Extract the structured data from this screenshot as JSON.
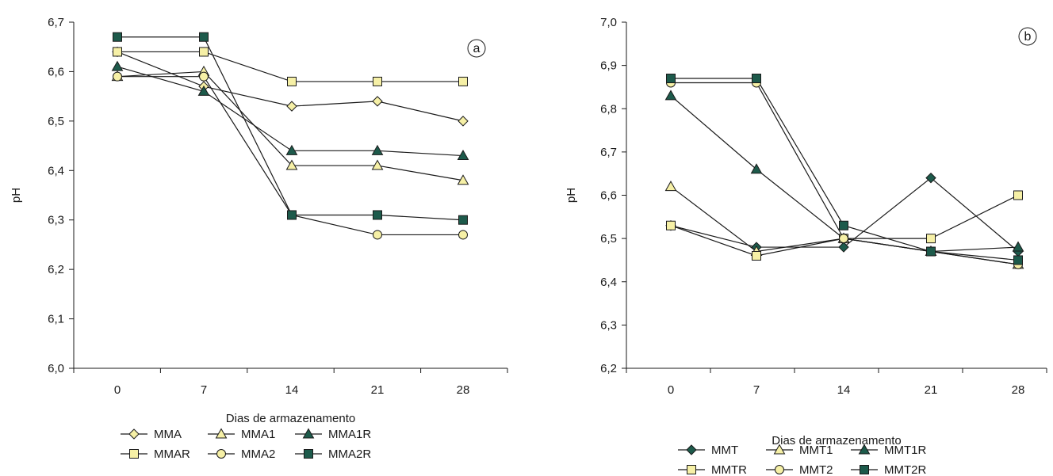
{
  "chart_data": [
    {
      "type": "line",
      "panel_label": "a",
      "xlabel": "Dias de armazenamento",
      "ylabel": "pH",
      "categories": [
        "0",
        "7",
        "14",
        "21",
        "28"
      ],
      "yticks": [
        "6,0",
        "6,1",
        "6,2",
        "6,3",
        "6,4",
        "6,5",
        "6,6",
        "6,7"
      ],
      "ylim": [
        6.0,
        6.7
      ],
      "grid": false,
      "legend_position": "bottom",
      "series": [
        {
          "name": "MMA",
          "marker": "diamond",
          "fill": "#f6f0a6",
          "values": [
            6.64,
            6.57,
            6.53,
            6.54,
            6.5
          ]
        },
        {
          "name": "MMA1",
          "marker": "triangle",
          "fill": "#f6f0a6",
          "values": [
            6.59,
            6.6,
            6.41,
            6.41,
            6.38
          ]
        },
        {
          "name": "MMA1R",
          "marker": "triangle",
          "fill": "#1d5a4b",
          "values": [
            6.61,
            6.56,
            6.44,
            6.44,
            6.43
          ]
        },
        {
          "name": "MMAR",
          "marker": "square",
          "fill": "#f6f0a6",
          "values": [
            6.64,
            6.64,
            6.58,
            6.58,
            6.58
          ]
        },
        {
          "name": "MMA2",
          "marker": "circle",
          "fill": "#f6f0a6",
          "values": [
            6.59,
            6.59,
            6.31,
            6.27,
            6.27
          ]
        },
        {
          "name": "MMA2R",
          "marker": "square",
          "fill": "#1d5a4b",
          "values": [
            6.67,
            6.67,
            6.31,
            6.31,
            6.3
          ]
        }
      ]
    },
    {
      "type": "line",
      "panel_label": "b",
      "xlabel": "Dias de armazenamento",
      "ylabel": "pH",
      "categories": [
        "0",
        "7",
        "14",
        "21",
        "28"
      ],
      "yticks": [
        "6,2",
        "6,3",
        "6,4",
        "6,5",
        "6,6",
        "6,7",
        "6,8",
        "6,9",
        "7,0"
      ],
      "ylim": [
        6.2,
        7.0
      ],
      "grid": false,
      "legend_position": "bottom",
      "series": [
        {
          "name": "MMT",
          "marker": "diamond",
          "fill": "#1d5a4b",
          "values": [
            6.53,
            6.48,
            6.48,
            6.64,
            6.47
          ]
        },
        {
          "name": "MMT1",
          "marker": "triangle",
          "fill": "#f6f0a6",
          "values": [
            6.62,
            6.47,
            6.5,
            6.47,
            6.44
          ]
        },
        {
          "name": "MMT1R",
          "marker": "triangle",
          "fill": "#1d5a4b",
          "values": [
            6.83,
            6.66,
            6.5,
            6.47,
            6.48
          ]
        },
        {
          "name": "MMTR",
          "marker": "square",
          "fill": "#f6f0a6",
          "values": [
            6.53,
            6.46,
            6.5,
            6.5,
            6.6
          ]
        },
        {
          "name": "MMT2",
          "marker": "circle",
          "fill": "#f6f0a6",
          "values": [
            6.86,
            6.86,
            6.5,
            6.47,
            6.44
          ]
        },
        {
          "name": "MMT2R",
          "marker": "square",
          "fill": "#1d5a4b",
          "values": [
            6.87,
            6.87,
            6.53,
            6.47,
            6.45
          ]
        }
      ]
    }
  ]
}
